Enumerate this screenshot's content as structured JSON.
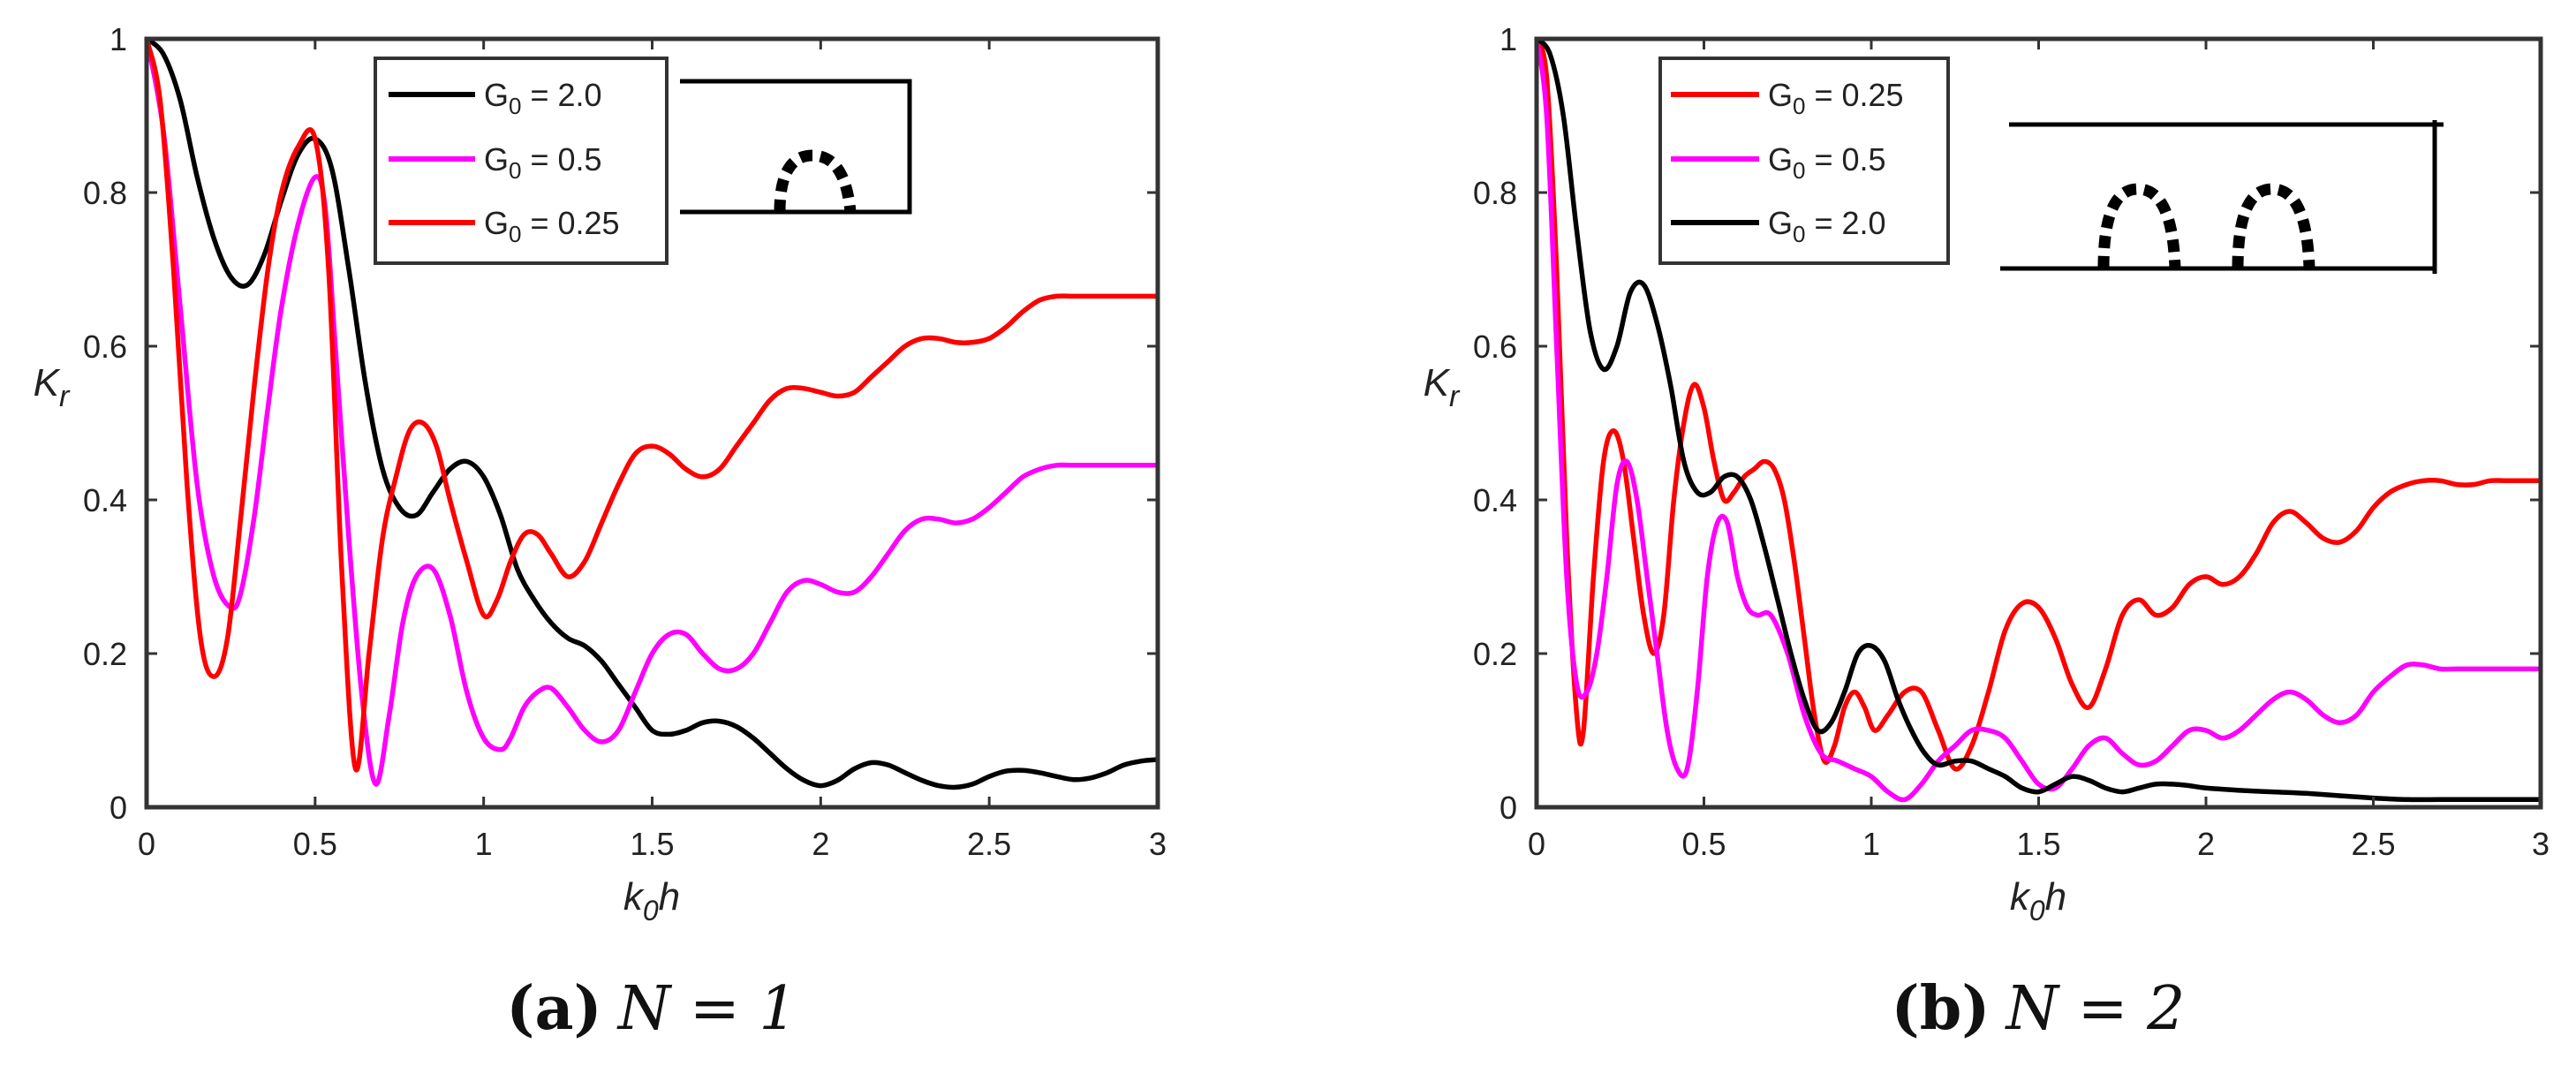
{
  "chart_data": [
    {
      "type": "line",
      "caption": {
        "letter": "(a)",
        "text": "N = 1"
      },
      "xlabel": "k0h",
      "ylabel": "Kr",
      "xlim": [
        0,
        3
      ],
      "ylim": [
        0,
        1
      ],
      "xticks": [
        "0",
        "0.5",
        "1",
        "1.5",
        "2",
        "2.5",
        "3"
      ],
      "yticks": [
        "0",
        "0.2",
        "0.4",
        "0.6",
        "0.8",
        "1"
      ],
      "grid": false,
      "legend_position": "top-center",
      "inset": "single breakwater",
      "series": [
        {
          "name": "G0 = 2.0",
          "color": "#000000",
          "x": [
            0,
            0.05,
            0.1,
            0.15,
            0.2,
            0.25,
            0.3,
            0.35,
            0.4,
            0.45,
            0.5,
            0.55,
            0.6,
            0.65,
            0.7,
            0.75,
            0.8,
            0.85,
            0.9,
            0.95,
            1.0,
            1.05,
            1.1,
            1.15,
            1.2,
            1.25,
            1.3,
            1.35,
            1.4,
            1.45,
            1.5,
            1.55,
            1.6,
            1.65,
            1.7,
            1.75,
            1.8,
            1.85,
            1.9,
            1.95,
            2.0,
            2.05,
            2.1,
            2.15,
            2.2,
            2.25,
            2.3,
            2.35,
            2.4,
            2.45,
            2.5,
            2.55,
            2.6,
            2.65,
            2.7,
            2.75,
            2.8,
            2.85,
            2.9,
            2.95,
            3.0
          ],
          "y": [
            1.0,
            0.98,
            0.92,
            0.82,
            0.74,
            0.69,
            0.68,
            0.72,
            0.79,
            0.85,
            0.87,
            0.83,
            0.7,
            0.55,
            0.44,
            0.39,
            0.38,
            0.41,
            0.44,
            0.45,
            0.43,
            0.38,
            0.31,
            0.27,
            0.24,
            0.22,
            0.21,
            0.19,
            0.16,
            0.13,
            0.1,
            0.095,
            0.1,
            0.11,
            0.112,
            0.105,
            0.09,
            0.07,
            0.05,
            0.035,
            0.028,
            0.035,
            0.05,
            0.058,
            0.055,
            0.045,
            0.035,
            0.028,
            0.026,
            0.03,
            0.04,
            0.047,
            0.048,
            0.045,
            0.04,
            0.036,
            0.038,
            0.045,
            0.055,
            0.06,
            0.062
          ]
        },
        {
          "name": "G0 = 0.5",
          "color": "#ff00ff",
          "x": [
            0,
            0.05,
            0.1,
            0.15,
            0.2,
            0.25,
            0.28,
            0.32,
            0.36,
            0.4,
            0.45,
            0.5,
            0.53,
            0.56,
            0.6,
            0.64,
            0.68,
            0.72,
            0.76,
            0.8,
            0.85,
            0.9,
            0.95,
            1.0,
            1.05,
            1.08,
            1.12,
            1.16,
            1.2,
            1.25,
            1.3,
            1.35,
            1.4,
            1.45,
            1.5,
            1.55,
            1.6,
            1.65,
            1.7,
            1.75,
            1.8,
            1.85,
            1.9,
            1.95,
            2.0,
            2.05,
            2.1,
            2.15,
            2.2,
            2.25,
            2.3,
            2.35,
            2.4,
            2.45,
            2.5,
            2.55,
            2.6,
            2.65,
            2.7,
            2.75,
            2.8,
            2.85,
            2.9,
            2.95,
            3.0
          ],
          "y": [
            1.0,
            0.88,
            0.65,
            0.42,
            0.3,
            0.26,
            0.28,
            0.38,
            0.52,
            0.65,
            0.76,
            0.82,
            0.78,
            0.6,
            0.35,
            0.14,
            0.03,
            0.12,
            0.24,
            0.3,
            0.31,
            0.25,
            0.15,
            0.09,
            0.075,
            0.09,
            0.13,
            0.15,
            0.155,
            0.13,
            0.1,
            0.085,
            0.1,
            0.15,
            0.2,
            0.225,
            0.225,
            0.2,
            0.18,
            0.18,
            0.2,
            0.24,
            0.28,
            0.295,
            0.29,
            0.28,
            0.28,
            0.3,
            0.33,
            0.36,
            0.375,
            0.375,
            0.37,
            0.375,
            0.39,
            0.41,
            0.43,
            0.44,
            0.445,
            0.445,
            0.445,
            0.445,
            0.445,
            0.445,
            0.445
          ]
        },
        {
          "name": "G0 = 0.25",
          "color": "#ff0000",
          "x": [
            0,
            0.04,
            0.08,
            0.12,
            0.16,
            0.2,
            0.24,
            0.28,
            0.32,
            0.36,
            0.4,
            0.45,
            0.5,
            0.54,
            0.58,
            0.62,
            0.66,
            0.7,
            0.74,
            0.78,
            0.82,
            0.86,
            0.9,
            0.95,
            1.0,
            1.04,
            1.08,
            1.12,
            1.16,
            1.2,
            1.25,
            1.3,
            1.35,
            1.4,
            1.45,
            1.5,
            1.55,
            1.6,
            1.65,
            1.7,
            1.75,
            1.8,
            1.85,
            1.9,
            1.95,
            2.0,
            2.05,
            2.1,
            2.15,
            2.2,
            2.25,
            2.3,
            2.35,
            2.4,
            2.45,
            2.5,
            2.55,
            2.6,
            2.65,
            2.7,
            2.75,
            2.8,
            2.85,
            2.9,
            2.95,
            3.0
          ],
          "y": [
            1.0,
            0.92,
            0.7,
            0.42,
            0.22,
            0.17,
            0.22,
            0.38,
            0.55,
            0.7,
            0.8,
            0.86,
            0.87,
            0.7,
            0.3,
            0.05,
            0.2,
            0.35,
            0.43,
            0.49,
            0.5,
            0.47,
            0.4,
            0.32,
            0.25,
            0.27,
            0.32,
            0.355,
            0.355,
            0.33,
            0.3,
            0.32,
            0.37,
            0.42,
            0.46,
            0.47,
            0.46,
            0.44,
            0.43,
            0.44,
            0.47,
            0.5,
            0.53,
            0.545,
            0.545,
            0.54,
            0.535,
            0.54,
            0.56,
            0.58,
            0.6,
            0.61,
            0.61,
            0.605,
            0.605,
            0.61,
            0.625,
            0.645,
            0.66,
            0.665,
            0.665,
            0.665,
            0.665,
            0.665,
            0.665,
            0.665
          ]
        }
      ]
    },
    {
      "type": "line",
      "caption": {
        "letter": "(b)",
        "text": "N = 2"
      },
      "xlabel": "k0h",
      "ylabel": "Kr",
      "xlim": [
        0,
        3
      ],
      "ylim": [
        0,
        1
      ],
      "xticks": [
        "0",
        "0.5",
        "1",
        "1.5",
        "2",
        "2.5",
        "3"
      ],
      "yticks": [
        "0",
        "0.2",
        "0.4",
        "0.6",
        "0.8",
        "1"
      ],
      "grid": false,
      "legend_position": "top-left",
      "inset": "double breakwater",
      "series": [
        {
          "name": "G0 = 0.25",
          "color": "#ff0000",
          "x": [
            0,
            0.03,
            0.06,
            0.09,
            0.12,
            0.14,
            0.17,
            0.2,
            0.23,
            0.26,
            0.29,
            0.32,
            0.35,
            0.38,
            0.41,
            0.44,
            0.47,
            0.5,
            0.53,
            0.56,
            0.59,
            0.62,
            0.65,
            0.68,
            0.71,
            0.74,
            0.77,
            0.8,
            0.83,
            0.86,
            0.89,
            0.92,
            0.95,
            0.98,
            1.01,
            1.05,
            1.1,
            1.15,
            1.2,
            1.25,
            1.3,
            1.35,
            1.4,
            1.45,
            1.5,
            1.55,
            1.6,
            1.65,
            1.7,
            1.75,
            1.8,
            1.85,
            1.9,
            1.95,
            2.0,
            2.05,
            2.1,
            2.15,
            2.2,
            2.25,
            2.3,
            2.35,
            2.4,
            2.45,
            2.5,
            2.55,
            2.6,
            2.65,
            2.7,
            2.75,
            2.8,
            2.85,
            2.9,
            2.95,
            3.0
          ],
          "y": [
            1.0,
            0.95,
            0.7,
            0.35,
            0.12,
            0.1,
            0.3,
            0.45,
            0.49,
            0.45,
            0.35,
            0.25,
            0.2,
            0.25,
            0.4,
            0.5,
            0.55,
            0.52,
            0.45,
            0.4,
            0.41,
            0.43,
            0.44,
            0.45,
            0.44,
            0.4,
            0.32,
            0.22,
            0.12,
            0.06,
            0.08,
            0.13,
            0.15,
            0.13,
            0.1,
            0.12,
            0.15,
            0.15,
            0.1,
            0.05,
            0.08,
            0.15,
            0.23,
            0.265,
            0.26,
            0.22,
            0.16,
            0.13,
            0.18,
            0.25,
            0.27,
            0.25,
            0.26,
            0.29,
            0.3,
            0.29,
            0.3,
            0.33,
            0.37,
            0.385,
            0.37,
            0.35,
            0.345,
            0.36,
            0.39,
            0.41,
            0.42,
            0.425,
            0.425,
            0.42,
            0.42,
            0.425,
            0.425,
            0.425,
            0.425
          ]
        },
        {
          "name": "G0 = 0.5",
          "color": "#ff00ff",
          "x": [
            0,
            0.03,
            0.06,
            0.09,
            0.12,
            0.15,
            0.18,
            0.21,
            0.24,
            0.27,
            0.3,
            0.33,
            0.36,
            0.39,
            0.42,
            0.45,
            0.48,
            0.51,
            0.54,
            0.57,
            0.6,
            0.63,
            0.66,
            0.7,
            0.75,
            0.8,
            0.85,
            0.9,
            0.95,
            1.0,
            1.05,
            1.1,
            1.15,
            1.2,
            1.25,
            1.3,
            1.35,
            1.4,
            1.45,
            1.5,
            1.55,
            1.6,
            1.65,
            1.7,
            1.75,
            1.8,
            1.85,
            1.9,
            1.95,
            2.0,
            2.05,
            2.1,
            2.15,
            2.2,
            2.25,
            2.3,
            2.35,
            2.4,
            2.45,
            2.5,
            2.55,
            2.6,
            2.65,
            2.7,
            2.75,
            2.8,
            2.85,
            2.9,
            2.95,
            3.0
          ],
          "y": [
            1.0,
            0.9,
            0.6,
            0.3,
            0.16,
            0.15,
            0.2,
            0.3,
            0.42,
            0.45,
            0.4,
            0.3,
            0.2,
            0.1,
            0.05,
            0.05,
            0.15,
            0.3,
            0.37,
            0.37,
            0.3,
            0.26,
            0.25,
            0.25,
            0.2,
            0.12,
            0.07,
            0.06,
            0.05,
            0.04,
            0.02,
            0.01,
            0.03,
            0.06,
            0.08,
            0.1,
            0.1,
            0.09,
            0.06,
            0.03,
            0.025,
            0.05,
            0.08,
            0.09,
            0.07,
            0.055,
            0.06,
            0.08,
            0.1,
            0.1,
            0.09,
            0.1,
            0.12,
            0.14,
            0.15,
            0.14,
            0.12,
            0.11,
            0.12,
            0.15,
            0.17,
            0.185,
            0.185,
            0.18,
            0.18,
            0.18,
            0.18,
            0.18,
            0.18,
            0.18
          ]
        },
        {
          "name": "G0 = 2.0",
          "color": "#000000",
          "x": [
            0,
            0.04,
            0.08,
            0.12,
            0.16,
            0.2,
            0.24,
            0.28,
            0.32,
            0.36,
            0.4,
            0.44,
            0.48,
            0.52,
            0.56,
            0.6,
            0.64,
            0.68,
            0.72,
            0.76,
            0.8,
            0.84,
            0.88,
            0.92,
            0.96,
            1.0,
            1.04,
            1.08,
            1.12,
            1.16,
            1.2,
            1.25,
            1.3,
            1.35,
            1.4,
            1.45,
            1.5,
            1.55,
            1.6,
            1.65,
            1.7,
            1.75,
            1.8,
            1.85,
            1.9,
            1.95,
            2.0,
            2.1,
            2.2,
            2.3,
            2.4,
            2.5,
            2.6,
            2.7,
            2.8,
            2.9,
            3.0
          ],
          "y": [
            1.0,
            0.98,
            0.9,
            0.75,
            0.62,
            0.57,
            0.6,
            0.67,
            0.68,
            0.63,
            0.55,
            0.45,
            0.41,
            0.41,
            0.43,
            0.43,
            0.4,
            0.34,
            0.27,
            0.2,
            0.14,
            0.1,
            0.11,
            0.15,
            0.2,
            0.21,
            0.19,
            0.14,
            0.1,
            0.07,
            0.055,
            0.06,
            0.06,
            0.05,
            0.04,
            0.025,
            0.02,
            0.03,
            0.04,
            0.035,
            0.025,
            0.02,
            0.025,
            0.03,
            0.03,
            0.028,
            0.025,
            0.022,
            0.02,
            0.018,
            0.015,
            0.012,
            0.01,
            0.01,
            0.01,
            0.01,
            0.01
          ]
        }
      ]
    }
  ]
}
